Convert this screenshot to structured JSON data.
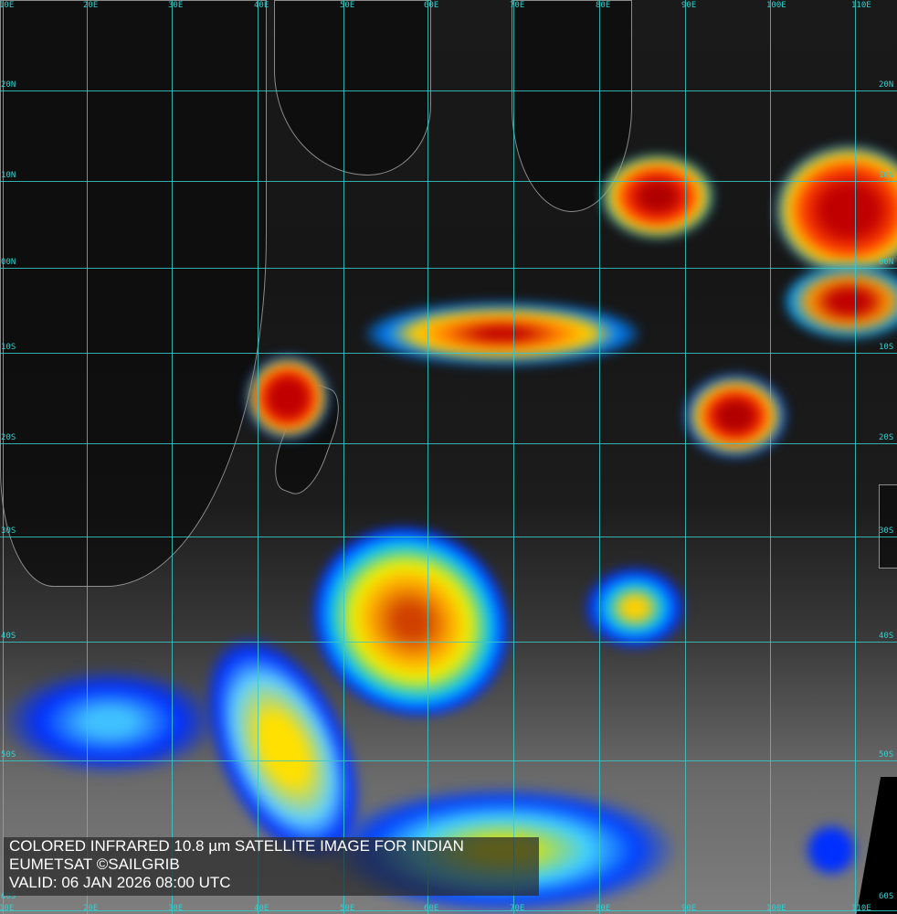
{
  "caption": {
    "line1": "COLORED INFRARED 10.8 µm SATELLITE IMAGE FOR INDIAN",
    "line2": "EUMETSAT ©SAILGRIB",
    "line3": "VALID:  06 JAN 2026 08:00 UTC"
  },
  "grid": {
    "longitude_labels": [
      "10E",
      "20E",
      "30E",
      "40E",
      "50E",
      "60E",
      "70E",
      "80E",
      "90E",
      "100E",
      "110E"
    ],
    "latitude_labels": [
      "20N",
      "10N",
      "00N",
      "10S",
      "20S",
      "30S",
      "40S",
      "50S",
      "60S"
    ]
  },
  "colors": {
    "grid": "#3cc8c8",
    "cold_top": "#d00000",
    "mid": "#ffe000",
    "warm": "#0030ff"
  }
}
